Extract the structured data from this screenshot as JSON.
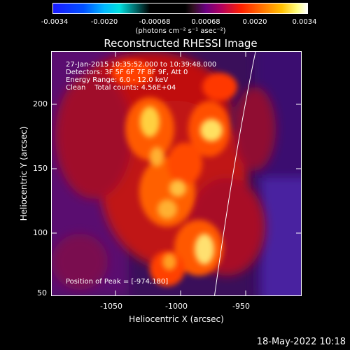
{
  "colorbar": {
    "ticks": [
      "-0.0034",
      "-0.0020",
      "-0.00068",
      "0.00068",
      "0.0020",
      "0.0034"
    ],
    "unit": "(photons cm⁻² s⁻¹ asec⁻²)"
  },
  "title": "Reconstructed RHESSI Image",
  "info": {
    "time_range": "27-Jan-2015 10:35:52.000 to 10:39:48.000",
    "detectors": "Detectors: 3F 5F 6F 7F 8F 9F, Att 0",
    "energy": "Energy Range: 6.0 - 12.0 keV",
    "clean": "Clean    Total counts: 4.56E+04",
    "peak": "Position of Peak = [-974,180]"
  },
  "axes": {
    "x_title": "Heliocentric X (arcsec)",
    "y_title": "Heliocentric Y (arcsec)",
    "x_ticks": [
      "-1050",
      "-1000",
      "-950"
    ],
    "y_ticks": [
      "200",
      "150",
      "100",
      "50"
    ]
  },
  "footer": {
    "timestamp": "18-May-2022 10:18"
  },
  "colors": {
    "background": "#000000",
    "frame": "#ffffff",
    "hot": "#ffff80",
    "low": "#4a1a80"
  }
}
